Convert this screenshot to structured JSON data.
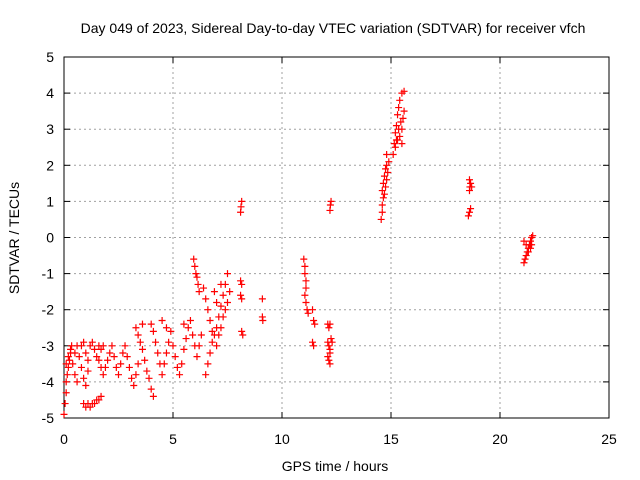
{
  "chart_data": {
    "type": "scatter",
    "title": "Day 049 of 2023, Sidereal Day-to-day VTEC variation (SDTVAR) for receiver vfch",
    "xlabel": "GPS time / hours",
    "ylabel": "SDTVAR / TECUs",
    "xlim": [
      0,
      25
    ],
    "ylim": [
      -5,
      5
    ],
    "xticks": [
      0,
      5,
      10,
      15,
      20,
      25
    ],
    "yticks": [
      -5,
      -4,
      -3,
      -2,
      -1,
      0,
      1,
      2,
      3,
      4,
      5
    ],
    "grid": true,
    "marker": "+",
    "color": "#ff0000",
    "series": [
      {
        "name": "SDTVAR",
        "points": [
          [
            0.0,
            -4.9
          ],
          [
            0.05,
            -4.6
          ],
          [
            0.1,
            -4.3
          ],
          [
            0.1,
            -4.0
          ],
          [
            0.15,
            -3.8
          ],
          [
            0.2,
            -3.6
          ],
          [
            0.25,
            -3.4
          ],
          [
            0.3,
            -3.2
          ],
          [
            0.35,
            -3.0
          ],
          [
            0.1,
            -3.5
          ],
          [
            0.2,
            -3.3
          ],
          [
            0.3,
            -3.1
          ],
          [
            0.4,
            -3.5
          ],
          [
            0.5,
            -3.8
          ],
          [
            0.6,
            -4.0
          ],
          [
            0.5,
            -3.2
          ],
          [
            0.6,
            -3.0
          ],
          [
            0.7,
            -3.3
          ],
          [
            0.8,
            -3.6
          ],
          [
            0.9,
            -3.9
          ],
          [
            1.0,
            -4.1
          ],
          [
            1.1,
            -3.7
          ],
          [
            0.8,
            -3.0
          ],
          [
            0.9,
            -2.9
          ],
          [
            1.0,
            -3.2
          ],
          [
            1.1,
            -3.4
          ],
          [
            1.2,
            -3.0
          ],
          [
            1.3,
            -2.9
          ],
          [
            1.4,
            -3.1
          ],
          [
            1.5,
            -3.3
          ],
          [
            1.6,
            -3.0
          ],
          [
            1.7,
            -3.1
          ],
          [
            1.8,
            -3.0
          ],
          [
            0.9,
            -4.6
          ],
          [
            1.0,
            -4.7
          ],
          [
            1.1,
            -4.6
          ],
          [
            1.2,
            -4.7
          ],
          [
            1.3,
            -4.6
          ],
          [
            1.4,
            -4.6
          ],
          [
            1.5,
            -4.5
          ],
          [
            1.6,
            -4.5
          ],
          [
            1.7,
            -4.4
          ],
          [
            1.6,
            -3.4
          ],
          [
            1.7,
            -3.6
          ],
          [
            1.8,
            -3.8
          ],
          [
            1.9,
            -3.6
          ],
          [
            2.0,
            -3.4
          ],
          [
            2.1,
            -3.2
          ],
          [
            2.2,
            -3.0
          ],
          [
            2.3,
            -3.3
          ],
          [
            2.4,
            -3.6
          ],
          [
            2.5,
            -3.8
          ],
          [
            2.6,
            -3.5
          ],
          [
            2.7,
            -3.2
          ],
          [
            2.8,
            -3.0
          ],
          [
            2.9,
            -3.3
          ],
          [
            3.0,
            -3.6
          ],
          [
            3.1,
            -3.9
          ],
          [
            3.2,
            -4.1
          ],
          [
            3.3,
            -3.8
          ],
          [
            3.4,
            -3.5
          ],
          [
            3.3,
            -2.5
          ],
          [
            3.4,
            -2.7
          ],
          [
            3.5,
            -2.9
          ],
          [
            3.6,
            -3.1
          ],
          [
            3.7,
            -3.4
          ],
          [
            3.6,
            -2.4
          ],
          [
            3.8,
            -3.7
          ],
          [
            3.9,
            -3.9
          ],
          [
            4.0,
            -4.2
          ],
          [
            4.1,
            -4.4
          ],
          [
            4.0,
            -2.4
          ],
          [
            4.1,
            -2.6
          ],
          [
            4.2,
            -2.9
          ],
          [
            4.3,
            -3.2
          ],
          [
            4.4,
            -3.5
          ],
          [
            4.5,
            -3.8
          ],
          [
            4.6,
            -3.5
          ],
          [
            4.7,
            -3.2
          ],
          [
            4.8,
            -2.9
          ],
          [
            4.9,
            -2.6
          ],
          [
            4.5,
            -2.3
          ],
          [
            4.7,
            -2.5
          ],
          [
            5.0,
            -3.0
          ],
          [
            5.1,
            -3.3
          ],
          [
            5.2,
            -3.6
          ],
          [
            5.3,
            -3.8
          ],
          [
            5.4,
            -3.5
          ],
          [
            5.5,
            -3.1
          ],
          [
            5.6,
            -2.8
          ],
          [
            5.7,
            -2.5
          ],
          [
            5.8,
            -2.3
          ],
          [
            5.5,
            -2.4
          ],
          [
            5.9,
            -2.7
          ],
          [
            6.0,
            -3.0
          ],
          [
            6.1,
            -3.3
          ],
          [
            6.2,
            -3.0
          ],
          [
            6.3,
            -2.7
          ],
          [
            5.95,
            -0.6
          ],
          [
            6.0,
            -0.8
          ],
          [
            6.05,
            -1.0
          ],
          [
            6.1,
            -1.1
          ],
          [
            6.15,
            -1.3
          ],
          [
            6.2,
            -1.5
          ],
          [
            6.4,
            -1.4
          ],
          [
            6.5,
            -1.7
          ],
          [
            6.6,
            -2.0
          ],
          [
            6.7,
            -2.3
          ],
          [
            6.8,
            -2.6
          ],
          [
            6.5,
            -3.8
          ],
          [
            6.6,
            -3.5
          ],
          [
            6.7,
            -3.2
          ],
          [
            6.8,
            -2.9
          ],
          [
            6.9,
            -2.7
          ],
          [
            7.0,
            -2.5
          ],
          [
            7.1,
            -2.2
          ],
          [
            7.2,
            -1.9
          ],
          [
            7.3,
            -1.6
          ],
          [
            7.4,
            -1.3
          ],
          [
            7.5,
            -1.0
          ],
          [
            7.0,
            -3.0
          ],
          [
            7.1,
            -2.7
          ],
          [
            7.2,
            -2.5
          ],
          [
            7.3,
            -2.2
          ],
          [
            7.4,
            -2.0
          ],
          [
            7.5,
            -1.8
          ],
          [
            7.6,
            -1.5
          ],
          [
            6.9,
            -1.5
          ],
          [
            7.0,
            -1.8
          ],
          [
            7.2,
            -1.3
          ],
          [
            8.1,
            -1.2
          ],
          [
            8.15,
            -1.3
          ],
          [
            8.1,
            -1.6
          ],
          [
            8.15,
            -1.7
          ],
          [
            8.15,
            -2.6
          ],
          [
            8.2,
            -2.7
          ],
          [
            8.1,
            0.7
          ],
          [
            8.12,
            0.85
          ],
          [
            8.15,
            1.0
          ],
          [
            9.1,
            -1.7
          ],
          [
            9.1,
            -2.2
          ],
          [
            9.12,
            -2.3
          ],
          [
            11.0,
            -0.6
          ],
          [
            11.05,
            -0.8
          ],
          [
            11.05,
            -1.0
          ],
          [
            11.1,
            -1.2
          ],
          [
            11.1,
            -1.4
          ],
          [
            11.05,
            -1.6
          ],
          [
            11.1,
            -1.8
          ],
          [
            11.15,
            -2.0
          ],
          [
            11.2,
            -2.1
          ],
          [
            11.4,
            -2.0
          ],
          [
            11.45,
            -2.3
          ],
          [
            11.5,
            -2.4
          ],
          [
            11.4,
            -2.9
          ],
          [
            11.45,
            -3.0
          ],
          [
            12.1,
            -2.4
          ],
          [
            12.15,
            -2.5
          ],
          [
            12.2,
            -2.4
          ],
          [
            12.1,
            -2.9
          ],
          [
            12.15,
            -3.0
          ],
          [
            12.2,
            -3.1
          ],
          [
            12.2,
            -3.2
          ],
          [
            12.1,
            -3.3
          ],
          [
            12.15,
            -3.4
          ],
          [
            12.2,
            -3.5
          ],
          [
            12.25,
            -2.8
          ],
          [
            12.3,
            -2.9
          ],
          [
            12.2,
            0.75
          ],
          [
            12.22,
            0.9
          ],
          [
            12.25,
            1.0
          ],
          [
            14.55,
            0.5
          ],
          [
            14.6,
            0.7
          ],
          [
            14.6,
            0.9
          ],
          [
            14.65,
            1.1
          ],
          [
            14.6,
            1.3
          ],
          [
            14.65,
            1.5
          ],
          [
            14.7,
            1.7
          ],
          [
            14.75,
            1.9
          ],
          [
            14.8,
            2.0
          ],
          [
            14.7,
            1.2
          ],
          [
            14.75,
            1.4
          ],
          [
            14.8,
            1.6
          ],
          [
            14.85,
            1.8
          ],
          [
            14.9,
            2.1
          ],
          [
            14.8,
            2.3
          ],
          [
            15.1,
            2.3
          ],
          [
            15.15,
            2.6
          ],
          [
            15.2,
            2.9
          ],
          [
            15.25,
            3.1
          ],
          [
            15.3,
            3.4
          ],
          [
            15.35,
            3.6
          ],
          [
            15.4,
            3.8
          ],
          [
            15.5,
            4.0
          ],
          [
            15.6,
            4.05
          ],
          [
            15.2,
            2.5
          ],
          [
            15.3,
            2.7
          ],
          [
            15.4,
            2.8
          ],
          [
            15.5,
            3.0
          ],
          [
            15.55,
            3.3
          ],
          [
            15.6,
            3.5
          ],
          [
            15.5,
            2.6
          ],
          [
            15.45,
            3.2
          ],
          [
            15.35,
            3.0
          ],
          [
            15.25,
            2.7
          ],
          [
            18.6,
            1.3
          ],
          [
            18.62,
            1.4
          ],
          [
            18.65,
            1.5
          ],
          [
            18.6,
            1.6
          ],
          [
            18.7,
            1.4
          ],
          [
            18.55,
            0.6
          ],
          [
            18.6,
            0.7
          ],
          [
            18.65,
            0.8
          ],
          [
            21.1,
            -0.7
          ],
          [
            21.15,
            -0.6
          ],
          [
            21.2,
            -0.5
          ],
          [
            21.25,
            -0.4
          ],
          [
            21.3,
            -0.3
          ],
          [
            21.35,
            -0.2
          ],
          [
            21.4,
            -0.1
          ],
          [
            21.45,
            0.0
          ],
          [
            21.5,
            0.05
          ],
          [
            21.1,
            -0.1
          ],
          [
            21.2,
            -0.2
          ],
          [
            21.3,
            -0.4
          ],
          [
            21.4,
            -0.3
          ],
          [
            21.45,
            -0.2
          ]
        ]
      }
    ]
  }
}
